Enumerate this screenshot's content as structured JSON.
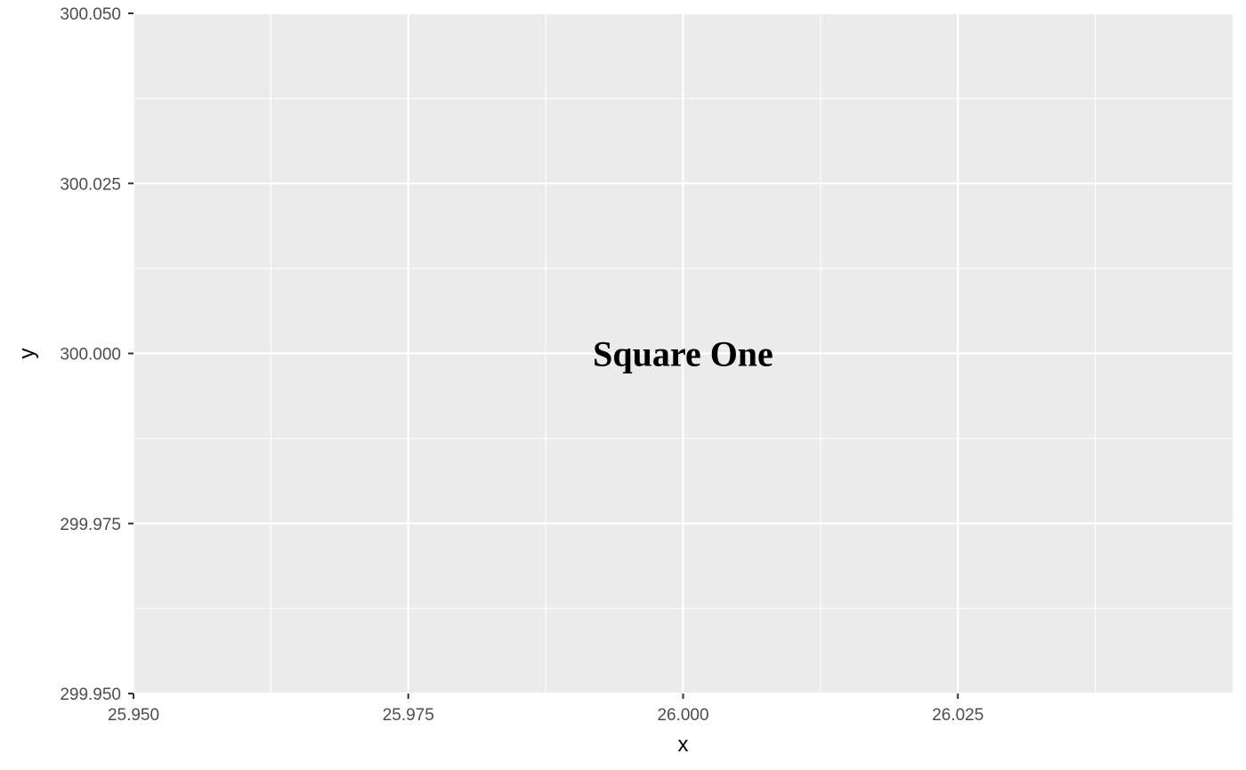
{
  "chart_data": {
    "type": "scatter",
    "title": "",
    "xlabel": "x",
    "ylabel": "y",
    "xlim": [
      25.95,
      26.05
    ],
    "ylim": [
      299.95,
      300.05
    ],
    "x_ticks": [
      25.95,
      25.975,
      26.0,
      26.025
    ],
    "x_tick_labels": [
      "25.950",
      "25.975",
      "26.000",
      "26.025"
    ],
    "y_ticks": [
      299.95,
      299.975,
      300.0,
      300.025,
      300.05
    ],
    "y_tick_labels": [
      "299.950",
      "299.975",
      "300.000",
      "300.025",
      "300.050"
    ],
    "grid": true,
    "points": [],
    "annotations": [
      {
        "x": 26.0,
        "y": 300.0,
        "text": "Square One"
      }
    ],
    "colors": {
      "panel_background": "#EBEBEB",
      "grid": "#FFFFFF",
      "tick_text": "#4D4D4D",
      "annotation_text": "#000000"
    }
  }
}
